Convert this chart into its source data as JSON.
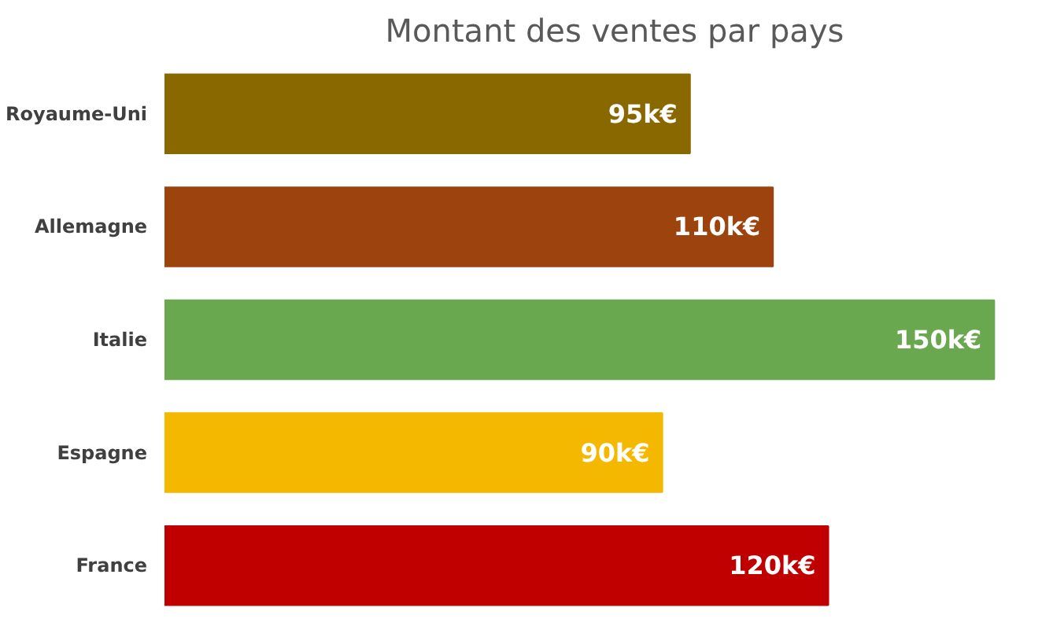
{
  "chart_data": {
    "type": "bar",
    "orientation": "horizontal",
    "title": "Montant des ventes par pays",
    "categories": [
      "Royaume-Uni",
      "Allemagne",
      "Italie",
      "Espagne",
      "France"
    ],
    "values": [
      95,
      110,
      150,
      90,
      120
    ],
    "colors": [
      "#8a6800",
      "#9c430e",
      "#6aa84f",
      "#f5b800",
      "#c00000"
    ],
    "value_labels": [
      "95k€",
      "110k€",
      "150k€",
      "90k€",
      "120k€"
    ],
    "grid": false
  }
}
